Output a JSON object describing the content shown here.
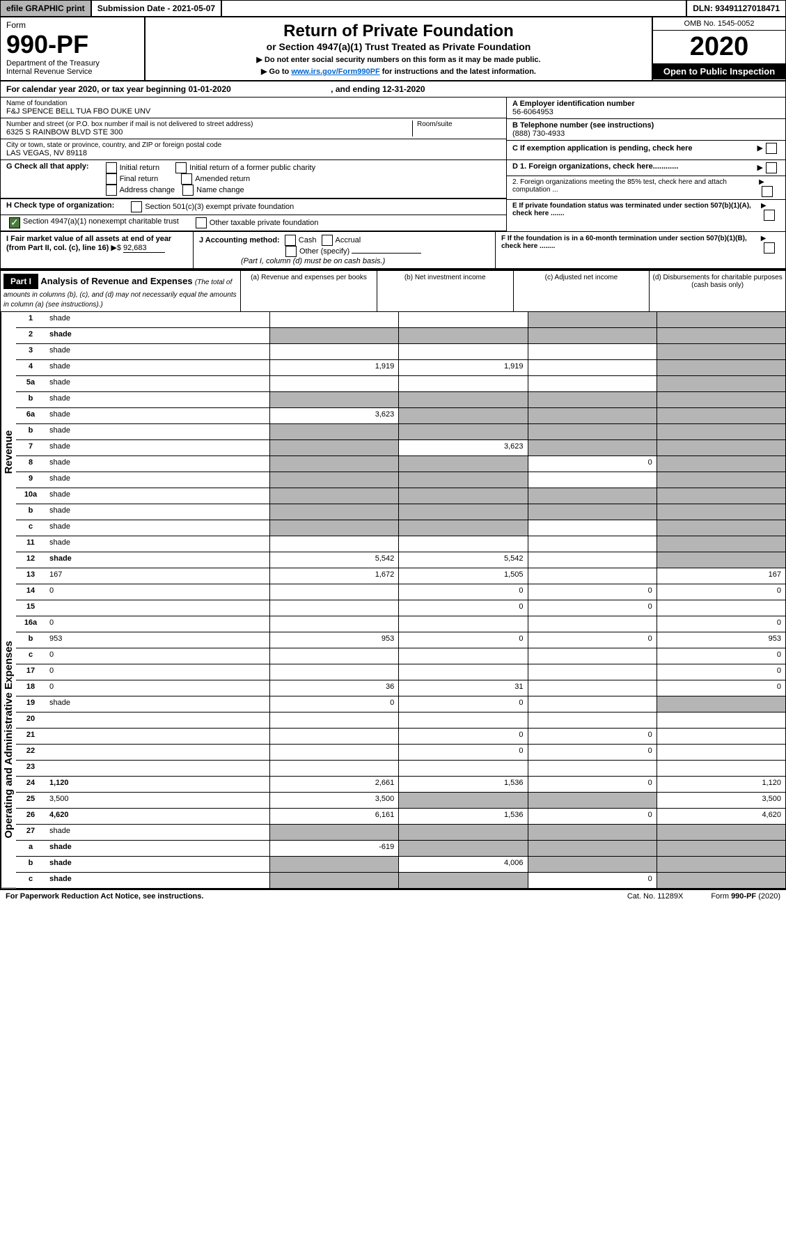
{
  "topbar": {
    "efile": "efile GRAPHIC print",
    "submission": "Submission Date - 2021-05-07",
    "dln": "DLN: 93491127018471"
  },
  "header": {
    "form_label": "Form",
    "form_number": "990-PF",
    "dept": "Department of the Treasury",
    "irs": "Internal Revenue Service",
    "title": "Return of Private Foundation",
    "subtitle": "or Section 4947(a)(1) Trust Treated as Private Foundation",
    "note1": "▶ Do not enter social security numbers on this form as it may be made public.",
    "note2_pre": "▶ Go to ",
    "note2_link": "www.irs.gov/Form990PF",
    "note2_post": " for instructions and the latest information.",
    "omb": "OMB No. 1545-0052",
    "year": "2020",
    "open": "Open to Public Inspection"
  },
  "cal": {
    "text": "For calendar year 2020, or tax year beginning 01-01-2020",
    "end": ", and ending 12-31-2020"
  },
  "info": {
    "name_label": "Name of foundation",
    "name": "F&J SPENCE BELL TUA FBO DUKE UNV",
    "addr_label": "Number and street (or P.O. box number if mail is not delivered to street address)",
    "addr": "6325 S RAINBOW BLVD STE 300",
    "room_label": "Room/suite",
    "city_label": "City or town, state or province, country, and ZIP or foreign postal code",
    "city": "LAS VEGAS, NV  89118",
    "ein_label": "A Employer identification number",
    "ein": "56-6064953",
    "phone_label": "B Telephone number (see instructions)",
    "phone": "(888) 730-4933",
    "c": "C If exemption application is pending, check here",
    "d1": "D 1. Foreign organizations, check here............",
    "d2": "2. Foreign organizations meeting the 85% test, check here and attach computation ...",
    "e": "E  If private foundation status was terminated under section 507(b)(1)(A), check here .......",
    "f": "F  If the foundation is in a 60-month termination under section 507(b)(1)(B), check here ........"
  },
  "g": {
    "label": "G Check all that apply:",
    "opts": [
      "Initial return",
      "Initial return of a former public charity",
      "Final return",
      "Amended return",
      "Address change",
      "Name change"
    ]
  },
  "h": {
    "label": "H Check type of organization:",
    "o1": "Section 501(c)(3) exempt private foundation",
    "o2": "Section 4947(a)(1) nonexempt charitable trust",
    "o3": "Other taxable private foundation"
  },
  "i": {
    "label": "I Fair market value of all assets at end of year (from Part II, col. (c), line 16)",
    "val": "92,683"
  },
  "j": {
    "label": "J Accounting method:",
    "cash": "Cash",
    "accrual": "Accrual",
    "other": "Other (specify)",
    "note": "(Part I, column (d) must be on cash basis.)"
  },
  "part1": {
    "label": "Part I",
    "title": "Analysis of Revenue and Expenses",
    "note": "(The total of amounts in columns (b), (c), and (d) may not necessarily equal the amounts in column (a) (see instructions).)",
    "col_a": "(a)   Revenue and expenses per books",
    "col_b": "(b)  Net investment income",
    "col_c": "(c)  Adjusted net income",
    "col_d": "(d)  Disbursements for charitable purposes (cash basis only)"
  },
  "side": {
    "revenue": "Revenue",
    "expenses": "Operating and Administrative Expenses"
  },
  "rows": [
    {
      "n": "1",
      "d": "shade",
      "a": "",
      "b": "",
      "c": "shade"
    },
    {
      "n": "2",
      "d": "shade",
      "a": "shade",
      "b": "shade",
      "c": "shade",
      "bold": true
    },
    {
      "n": "3",
      "d": "shade",
      "a": "",
      "b": "",
      "c": ""
    },
    {
      "n": "4",
      "d": "shade",
      "a": "1,919",
      "b": "1,919",
      "c": ""
    },
    {
      "n": "5a",
      "d": "shade",
      "a": "",
      "b": "",
      "c": ""
    },
    {
      "n": "b",
      "d": "shade",
      "a": "shade",
      "b": "shade",
      "c": "shade"
    },
    {
      "n": "6a",
      "d": "shade",
      "a": "3,623",
      "b": "shade",
      "c": "shade"
    },
    {
      "n": "b",
      "d": "shade",
      "a": "shade",
      "b": "shade",
      "c": "shade"
    },
    {
      "n": "7",
      "d": "shade",
      "a": "shade",
      "b": "3,623",
      "c": "shade"
    },
    {
      "n": "8",
      "d": "shade",
      "a": "shade",
      "b": "shade",
      "c": "0"
    },
    {
      "n": "9",
      "d": "shade",
      "a": "shade",
      "b": "shade",
      "c": ""
    },
    {
      "n": "10a",
      "d": "shade",
      "a": "shade",
      "b": "shade",
      "c": "shade"
    },
    {
      "n": "b",
      "d": "shade",
      "a": "shade",
      "b": "shade",
      "c": "shade"
    },
    {
      "n": "c",
      "d": "shade",
      "a": "shade",
      "b": "shade",
      "c": ""
    },
    {
      "n": "11",
      "d": "shade",
      "a": "",
      "b": "",
      "c": ""
    },
    {
      "n": "12",
      "d": "shade",
      "a": "5,542",
      "b": "5,542",
      "c": "",
      "bold": true
    },
    {
      "n": "13",
      "d": "167",
      "a": "1,672",
      "b": "1,505",
      "c": ""
    },
    {
      "n": "14",
      "d": "0",
      "a": "",
      "b": "0",
      "c": "0"
    },
    {
      "n": "15",
      "d": "",
      "a": "",
      "b": "0",
      "c": "0"
    },
    {
      "n": "16a",
      "d": "0",
      "a": "",
      "b": "",
      "c": ""
    },
    {
      "n": "b",
      "d": "953",
      "a": "953",
      "b": "0",
      "c": "0"
    },
    {
      "n": "c",
      "d": "0",
      "a": "",
      "b": "",
      "c": ""
    },
    {
      "n": "17",
      "d": "0",
      "a": "",
      "b": "",
      "c": ""
    },
    {
      "n": "18",
      "d": "0",
      "a": "36",
      "b": "31",
      "c": ""
    },
    {
      "n": "19",
      "d": "shade",
      "a": "0",
      "b": "0",
      "c": ""
    },
    {
      "n": "20",
      "d": "",
      "a": "",
      "b": "",
      "c": ""
    },
    {
      "n": "21",
      "d": "",
      "a": "",
      "b": "0",
      "c": "0"
    },
    {
      "n": "22",
      "d": "",
      "a": "",
      "b": "0",
      "c": "0"
    },
    {
      "n": "23",
      "d": "",
      "a": "",
      "b": "",
      "c": ""
    },
    {
      "n": "24",
      "d": "1,120",
      "a": "2,661",
      "b": "1,536",
      "c": "0",
      "bold": true
    },
    {
      "n": "25",
      "d": "3,500",
      "a": "3,500",
      "b": "shade",
      "c": "shade"
    },
    {
      "n": "26",
      "d": "4,620",
      "a": "6,161",
      "b": "1,536",
      "c": "0",
      "bold": true
    },
    {
      "n": "27",
      "d": "shade",
      "a": "shade",
      "b": "shade",
      "c": "shade"
    },
    {
      "n": "a",
      "d": "shade",
      "a": "-619",
      "b": "shade",
      "c": "shade",
      "bold": true
    },
    {
      "n": "b",
      "d": "shade",
      "a": "shade",
      "b": "4,006",
      "c": "shade",
      "bold": true
    },
    {
      "n": "c",
      "d": "shade",
      "a": "shade",
      "b": "shade",
      "c": "0",
      "bold": true
    }
  ],
  "footer": {
    "left": "For Paperwork Reduction Act Notice, see instructions.",
    "mid": "Cat. No. 11289X",
    "right": "Form 990-PF (2020)"
  }
}
